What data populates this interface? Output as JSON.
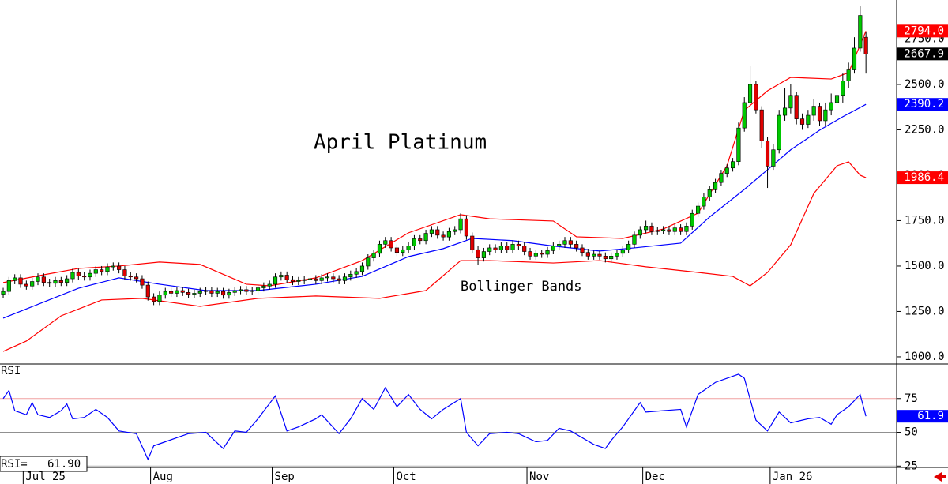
{
  "chart_data": [
    {
      "type": "candlestick",
      "title": "April Platinum",
      "annotation": "Bollinger Bands",
      "up_color": "#00c800",
      "down_color": "#e00000",
      "open": [
        1345,
        1360,
        1420,
        1435,
        1400,
        1390,
        1415,
        1440,
        1410,
        1405,
        1420,
        1410,
        1430,
        1465,
        1445,
        1440,
        1460,
        1480,
        1470,
        1495,
        1500,
        1480,
        1445,
        1440,
        1430,
        1395,
        1330,
        1305,
        1340,
        1360,
        1350,
        1365,
        1355,
        1345,
        1350,
        1360,
        1365,
        1350,
        1360,
        1340,
        1355,
        1365,
        1370,
        1360,
        1365,
        1380,
        1390,
        1400,
        1440,
        1450,
        1425,
        1415,
        1420,
        1425,
        1430,
        1420,
        1435,
        1440,
        1430,
        1420,
        1440,
        1455,
        1470,
        1500,
        1545,
        1570,
        1620,
        1640,
        1600,
        1575,
        1590,
        1610,
        1650,
        1640,
        1680,
        1700,
        1670,
        1660,
        1690,
        1700,
        1760,
        1665,
        1590,
        1545,
        1580,
        1600,
        1590,
        1610,
        1590,
        1620,
        1610,
        1580,
        1555,
        1570,
        1565,
        1585,
        1610,
        1620,
        1640,
        1620,
        1600,
        1575,
        1555,
        1565,
        1555,
        1540,
        1555,
        1570,
        1590,
        1620,
        1670,
        1700,
        1720,
        1690,
        1695,
        1700,
        1690,
        1710,
        1690,
        1720,
        1790,
        1830,
        1880,
        1920,
        1960,
        2010,
        2040,
        2075,
        2260,
        2400,
        2500,
        2360,
        2190,
        2050,
        2140,
        2330,
        2370,
        2440,
        2310,
        2280,
        2330,
        2380,
        2300,
        2360,
        2400,
        2440,
        2520,
        2580,
        2700,
        2760
      ],
      "high": [
        1380,
        1440,
        1455,
        1455,
        1420,
        1435,
        1460,
        1460,
        1430,
        1440,
        1440,
        1450,
        1485,
        1485,
        1465,
        1480,
        1500,
        1500,
        1515,
        1520,
        1520,
        1500,
        1465,
        1460,
        1450,
        1415,
        1350,
        1360,
        1380,
        1380,
        1385,
        1385,
        1375,
        1370,
        1380,
        1385,
        1385,
        1380,
        1380,
        1375,
        1385,
        1390,
        1390,
        1385,
        1400,
        1410,
        1420,
        1460,
        1470,
        1470,
        1445,
        1440,
        1445,
        1450,
        1450,
        1455,
        1460,
        1460,
        1450,
        1460,
        1475,
        1490,
        1520,
        1565,
        1590,
        1640,
        1660,
        1660,
        1620,
        1610,
        1630,
        1670,
        1670,
        1700,
        1720,
        1720,
        1690,
        1710,
        1720,
        1790,
        1780,
        1685,
        1610,
        1600,
        1620,
        1620,
        1630,
        1630,
        1640,
        1640,
        1630,
        1600,
        1590,
        1590,
        1605,
        1630,
        1640,
        1660,
        1660,
        1640,
        1620,
        1595,
        1585,
        1585,
        1575,
        1575,
        1590,
        1610,
        1640,
        1690,
        1720,
        1750,
        1740,
        1715,
        1720,
        1720,
        1730,
        1730,
        1740,
        1810,
        1850,
        1900,
        1940,
        1980,
        2030,
        2060,
        2095,
        2290,
        2430,
        2600,
        2520,
        2380,
        2210,
        2170,
        2360,
        2480,
        2500,
        2460,
        2340,
        2360,
        2420,
        2400,
        2400,
        2450,
        2470,
        2560,
        2620,
        2760,
        2930,
        2790
      ],
      "low": [
        1325,
        1340,
        1400,
        1380,
        1370,
        1370,
        1395,
        1390,
        1385,
        1385,
        1390,
        1390,
        1410,
        1425,
        1420,
        1420,
        1440,
        1450,
        1450,
        1475,
        1460,
        1425,
        1420,
        1410,
        1375,
        1310,
        1285,
        1285,
        1320,
        1330,
        1330,
        1335,
        1325,
        1325,
        1330,
        1340,
        1330,
        1330,
        1320,
        1320,
        1335,
        1345,
        1340,
        1340,
        1345,
        1360,
        1370,
        1380,
        1420,
        1405,
        1395,
        1395,
        1400,
        1405,
        1400,
        1400,
        1415,
        1410,
        1400,
        1400,
        1420,
        1435,
        1450,
        1480,
        1525,
        1550,
        1600,
        1580,
        1555,
        1555,
        1570,
        1590,
        1620,
        1620,
        1660,
        1650,
        1640,
        1640,
        1670,
        1680,
        1645,
        1570,
        1505,
        1525,
        1560,
        1570,
        1570,
        1570,
        1570,
        1590,
        1560,
        1535,
        1535,
        1545,
        1545,
        1565,
        1590,
        1600,
        1600,
        1580,
        1555,
        1535,
        1535,
        1535,
        1520,
        1520,
        1535,
        1550,
        1570,
        1600,
        1650,
        1680,
        1670,
        1670,
        1675,
        1670,
        1670,
        1670,
        1670,
        1700,
        1770,
        1810,
        1860,
        1900,
        1940,
        1990,
        2020,
        2055,
        2240,
        2380,
        2340,
        2150,
        1930,
        2030,
        2120,
        2300,
        2340,
        2280,
        2250,
        2260,
        2300,
        2270,
        2270,
        2330,
        2360,
        2400,
        2480,
        2560,
        2680,
        2560
      ],
      "close": [
        1360,
        1420,
        1435,
        1400,
        1390,
        1415,
        1440,
        1410,
        1405,
        1420,
        1410,
        1430,
        1465,
        1445,
        1440,
        1460,
        1480,
        1470,
        1495,
        1500,
        1480,
        1445,
        1440,
        1430,
        1395,
        1330,
        1305,
        1340,
        1360,
        1350,
        1365,
        1355,
        1345,
        1350,
        1360,
        1365,
        1350,
        1360,
        1340,
        1355,
        1365,
        1370,
        1360,
        1365,
        1380,
        1390,
        1400,
        1440,
        1450,
        1425,
        1415,
        1420,
        1425,
        1430,
        1420,
        1435,
        1440,
        1430,
        1420,
        1440,
        1455,
        1470,
        1500,
        1545,
        1570,
        1620,
        1640,
        1600,
        1575,
        1590,
        1610,
        1650,
        1640,
        1680,
        1700,
        1670,
        1660,
        1690,
        1700,
        1760,
        1665,
        1590,
        1545,
        1580,
        1600,
        1590,
        1610,
        1590,
        1620,
        1610,
        1580,
        1555,
        1570,
        1565,
        1585,
        1610,
        1620,
        1640,
        1620,
        1600,
        1575,
        1555,
        1565,
        1555,
        1540,
        1555,
        1570,
        1590,
        1620,
        1670,
        1700,
        1720,
        1690,
        1695,
        1700,
        1690,
        1710,
        1690,
        1720,
        1790,
        1830,
        1880,
        1920,
        1960,
        2010,
        2040,
        2075,
        2260,
        2400,
        2500,
        2360,
        2190,
        2050,
        2140,
        2330,
        2370,
        2440,
        2310,
        2280,
        2330,
        2380,
        2300,
        2360,
        2400,
        2440,
        2520,
        2580,
        2700,
        2880,
        2667.9
      ],
      "bands": [
        {
          "color": "#ff0000",
          "x": [
            0,
            7,
            13,
            20,
            27,
            34,
            42,
            46,
            54,
            62,
            70,
            79,
            84,
            95,
            99,
            107,
            114,
            120,
            125,
            128,
            132,
            136,
            143,
            146,
            149
          ],
          "values": [
            1409,
            1452,
            1487,
            1500,
            1522,
            1509,
            1400,
            1391,
            1435,
            1530,
            1683,
            1783,
            1760,
            1748,
            1661,
            1652,
            1704,
            1791,
            2052,
            2357,
            2465,
            2539,
            2530,
            2565,
            2794
          ],
          "end_label": "2794.0"
        },
        {
          "color": "#0000ff",
          "x": [
            0,
            13,
            20,
            27,
            35,
            44,
            54,
            62,
            70,
            76,
            81,
            88,
            95,
            103,
            109,
            117,
            122,
            128,
            132,
            136,
            141,
            145,
            149
          ],
          "values": [
            1213,
            1378,
            1435,
            1400,
            1365,
            1365,
            1400,
            1443,
            1552,
            1596,
            1652,
            1640,
            1610,
            1583,
            1600,
            1626,
            1770,
            1922,
            2030,
            2140,
            2248,
            2322,
            2390.2
          ]
        },
        {
          "color": "#ff0000",
          "x": [
            0,
            4,
            10,
            17,
            24,
            34,
            44,
            54,
            65,
            73,
            79,
            84,
            95,
            103,
            111,
            120,
            126,
            129,
            132,
            136,
            140,
            144,
            146,
            148,
            149
          ],
          "values": [
            1030,
            1087,
            1226,
            1313,
            1322,
            1278,
            1322,
            1335,
            1322,
            1365,
            1530,
            1530,
            1517,
            1530,
            1496,
            1465,
            1443,
            1391,
            1465,
            1617,
            1900,
            2052,
            2074,
            2000,
            1986.4
          ]
        }
      ],
      "xlim": [
        -0.55,
        154.3
      ],
      "ylim": [
        965,
        2965
      ],
      "yticks": [
        {
          "value": 1000,
          "label": "1000.0"
        },
        {
          "value": 1250,
          "label": "1250.0"
        },
        {
          "value": 1500,
          "label": "1500.0"
        },
        {
          "value": 1750,
          "label": "1750.0"
        },
        {
          "value": 2000,
          "label": "2000.0"
        },
        {
          "value": 2250,
          "label": "2250.0"
        },
        {
          "value": 2500,
          "label": "2500.0"
        },
        {
          "value": 2750,
          "label": "2750.0"
        }
      ],
      "xticks": [
        {
          "value": 4,
          "label": "Jul 25"
        },
        {
          "value": 26,
          "label": "Aug"
        },
        {
          "value": 47,
          "label": "Sep"
        },
        {
          "value": 68,
          "label": "Oct"
        },
        {
          "value": 91,
          "label": "Nov"
        },
        {
          "value": 111,
          "label": "Dec"
        },
        {
          "value": 133,
          "label": "Jan 26"
        }
      ]
    },
    {
      "type": "line",
      "title": "RSI",
      "readout": "RSI=   61.90",
      "x": [
        0,
        1,
        2,
        4,
        5,
        6,
        8,
        10,
        11,
        12,
        14,
        16,
        18,
        20,
        23,
        25,
        26,
        28,
        30,
        32,
        35,
        38,
        40,
        42,
        44,
        47,
        49,
        51,
        54,
        55,
        58,
        60,
        62,
        64,
        66,
        68,
        70,
        72,
        74,
        76,
        79,
        80,
        82,
        84,
        87,
        89,
        92,
        94,
        96,
        98,
        100,
        102,
        104,
        105,
        107,
        110,
        111,
        114,
        117,
        118,
        120,
        123,
        125,
        127,
        128,
        130,
        132,
        134,
        136,
        139,
        141,
        143,
        144,
        146,
        148,
        149
      ],
      "series": [
        {
          "color": "#0000ff",
          "values": [
            75,
            81,
            66,
            63,
            72,
            63,
            61,
            66,
            71,
            60,
            61,
            67,
            61,
            51,
            49,
            30,
            40,
            43,
            46,
            49,
            50,
            38,
            51,
            50,
            60,
            77,
            51,
            54,
            60,
            63,
            49,
            60,
            75,
            67,
            83,
            69,
            78,
            67,
            60,
            67,
            75,
            50,
            40,
            49,
            50,
            49,
            43,
            44,
            53,
            51,
            46,
            41,
            38,
            44,
            54,
            72,
            65,
            66,
            67,
            54,
            78,
            87,
            90,
            93,
            90,
            59,
            51,
            65,
            57,
            60,
            61,
            56,
            63,
            69,
            78,
            61.9
          ]
        }
      ],
      "ylim": [
        24,
        100
      ],
      "yticks": [
        25,
        50,
        75
      ],
      "grid_colors": [
        "#b0b0b0",
        "#909090",
        "#f0a0a0"
      ]
    }
  ]
}
